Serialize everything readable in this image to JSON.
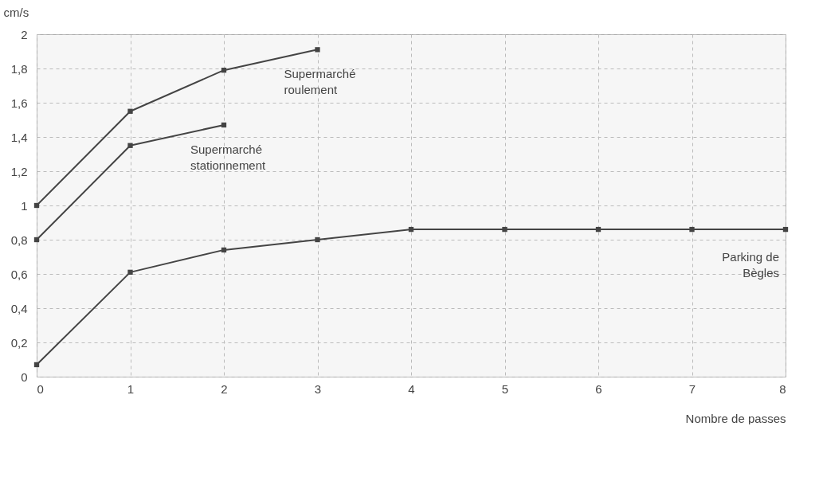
{
  "chart_data": {
    "type": "line",
    "xlabel": "Nombre de passes",
    "ylabel": "cm/s",
    "series": [
      {
        "name": "Supermarché roulement",
        "color": "#444444",
        "x": [
          0,
          1,
          2,
          3
        ],
        "values": [
          1.0,
          1.55,
          1.79,
          1.91
        ]
      },
      {
        "name": "Supermarché stationnement",
        "color": "#444444",
        "x": [
          0,
          1,
          2
        ],
        "values": [
          0.8,
          1.35,
          1.47
        ]
      },
      {
        "name": "Parking de Bègles",
        "color": "#444444",
        "x": [
          0,
          1,
          2,
          3,
          4,
          5,
          6,
          7,
          8
        ],
        "values": [
          0.07,
          0.61,
          0.74,
          0.8,
          0.86,
          0.86,
          0.86,
          0.86,
          0.86
        ]
      }
    ],
    "xlim": [
      0,
      8
    ],
    "xticks": [
      0,
      1,
      2,
      3,
      4,
      5,
      6,
      7,
      8
    ],
    "ylim": [
      0,
      2
    ],
    "yticks": [
      0,
      {
        "value": 0.2,
        "label": "0,2"
      },
      {
        "value": 0.4,
        "label": "0,4"
      },
      {
        "value": 0.6,
        "label": "0,6"
      },
      {
        "value": 0.8,
        "label": "0,8"
      },
      1,
      {
        "value": 1.2,
        "label": "1,2"
      },
      {
        "value": 1.4,
        "label": "1,4"
      },
      {
        "value": 1.6,
        "label": "1,6"
      },
      {
        "value": 1.8,
        "label": "1,8"
      },
      2
    ],
    "grid": true,
    "marker": "square"
  }
}
